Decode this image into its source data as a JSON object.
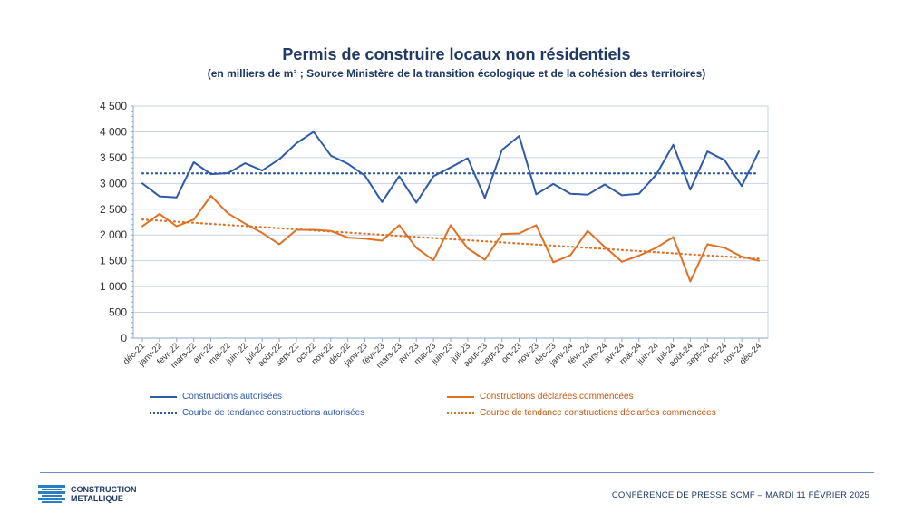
{
  "header": {
    "title": "Permis de construire locaux non résidentiels",
    "subtitle": "(en milliers de m² ; Source Ministère de la transition écologique et de la cohésion des territoires)"
  },
  "chart_data": {
    "type": "line",
    "categories": [
      "déc-21",
      "janv-22",
      "févr-22",
      "mars-22",
      "avr-22",
      "mai-22",
      "juin-22",
      "juil-22",
      "août-22",
      "sept-22",
      "oct-22",
      "nov-22",
      "déc-22",
      "janv-23",
      "févr-23",
      "mars-23",
      "avr-23",
      "mai-23",
      "juin-23",
      "juil-23",
      "août-23",
      "sept-23",
      "oct-23",
      "nov-23",
      "déc-23",
      "janv-24",
      "févr-24",
      "mars-24",
      "avr-24",
      "mai-24",
      "juin-24",
      "juil-24",
      "août-24",
      "sept-24",
      "oct-24",
      "nov-24",
      "déc-24"
    ],
    "ylim": [
      0,
      4500
    ],
    "yticks": [
      0,
      500,
      1000,
      1500,
      2000,
      2500,
      3000,
      3500,
      4000,
      4500
    ],
    "ytick_labels": [
      "0",
      "500",
      "1 000",
      "1 500",
      "2 000",
      "2 500",
      "3 000",
      "3 500",
      "4 000",
      "4 500"
    ],
    "grid": "horizontal",
    "legend_position": "bottom",
    "series": [
      {
        "name": "Constructions autorisées",
        "color": "#2e5aa8",
        "style": "solid",
        "values": [
          3000,
          2750,
          2730,
          3410,
          3180,
          3200,
          3390,
          3250,
          3470,
          3780,
          4000,
          3540,
          3380,
          3150,
          2640,
          3140,
          2630,
          3140,
          3310,
          3490,
          2720,
          3650,
          3920,
          2790,
          2990,
          2800,
          2780,
          2980,
          2770,
          2800,
          3170,
          3750,
          2880,
          3620,
          3450,
          2950,
          3620
        ]
      },
      {
        "name": "Constructions déclarées commencées",
        "color": "#e07023",
        "style": "solid",
        "values": [
          2170,
          2410,
          2170,
          2300,
          2760,
          2420,
          2220,
          2040,
          1820,
          2100,
          2100,
          2080,
          1950,
          1930,
          1890,
          2190,
          1750,
          1510,
          2190,
          1740,
          1520,
          2020,
          2030,
          2190,
          1470,
          1610,
          2080,
          1770,
          1480,
          1600,
          1750,
          1960,
          1100,
          1820,
          1750,
          1580,
          1500
        ]
      },
      {
        "name": "Courbe de tendance constructions autorisées",
        "color": "#2e5aa8",
        "style": "dotted",
        "trend": [
          3195,
          3195
        ]
      },
      {
        "name": "Courbe de tendance constructions déclarées commencées",
        "color": "#e07023",
        "style": "dotted",
        "trend": [
          2300,
          1540
        ]
      }
    ]
  },
  "logo": {
    "line1": "CONSTRUCTION",
    "line2": "METALLIQUE"
  },
  "footer": {
    "text": "CONFÉRENCE DE PRESSE SCMF – MARDI 11 FÉVRIER 2025"
  }
}
